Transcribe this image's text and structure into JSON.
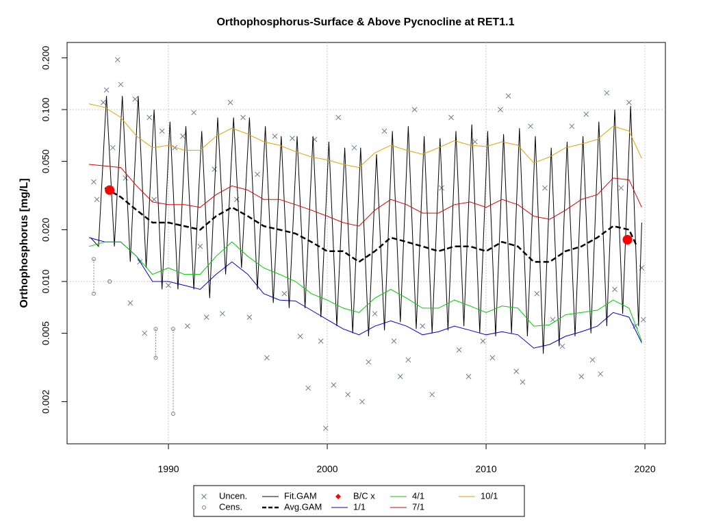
{
  "chart_data": {
    "type": "scatter",
    "title": "Orthophosphorus-Surface & Above Pycnocline at RET1.1",
    "y_label": "Orthophosphorus [mg/L]",
    "log_y": true,
    "xlim": [
      1983.62,
      2021.29
    ],
    "ylim": [
      0.001137,
      0.2457
    ],
    "xticks": [
      1990,
      2000,
      2010,
      2020
    ],
    "yticks": [
      0.002,
      0.005,
      {
        "value": 0.01,
        "label": "0.010"
      },
      {
        "value": 0.02,
        "label": "0.020"
      },
      {
        "value": 0.05,
        "label": "0.050"
      },
      {
        "value": 0.1,
        "label": "0.100"
      },
      {
        "value": 0.2,
        "label": "0.200"
      }
    ],
    "xgrid": [
      1990,
      2000,
      2010,
      2020
    ],
    "ygrid": [
      0.01,
      0.1
    ],
    "legend": "bottom",
    "series": [
      {
        "name": "Uncen.",
        "color": "#6b7a8f",
        "marker": "x",
        "x": [
          1985.3,
          1985.5,
          1985.9,
          1986.1,
          1986.5,
          1986.8,
          1987.0,
          1987.3,
          1987.6,
          1987.9,
          1988.2,
          1988.5,
          1988.8,
          1989.1,
          1989.6,
          1990.0,
          1990.4,
          1990.9,
          1991.2,
          1991.6,
          1992.0,
          1992.4,
          1992.9,
          1993.4,
          1993.9,
          1994.3,
          1994.7,
          1995.1,
          1995.6,
          1996.2,
          1996.7,
          1997.3,
          1997.8,
          1998.3,
          1998.8,
          1999.2,
          1999.6,
          1999.9,
          2000.4,
          2000.7,
          2001.3,
          2001.7,
          2002.2,
          2002.6,
          2003.0,
          2003.6,
          2004.2,
          2004.6,
          2005.1,
          2005.5,
          2006.0,
          2006.6,
          2007.2,
          2007.8,
          2008.3,
          2008.9,
          2009.3,
          2009.8,
          2010.4,
          2010.9,
          2011.4,
          2011.9,
          2012.3,
          2012.8,
          2013.2,
          2013.7,
          2014.2,
          2014.8,
          2015.4,
          2016.0,
          2016.3,
          2016.7,
          2017.2,
          2017.6,
          2018.1,
          2018.5,
          2019.0,
          2019.4,
          2019.8,
          2019.9
        ],
        "values": [
          0.038,
          0.03,
          0.11,
          0.13,
          0.06,
          0.195,
          0.14,
          0.04,
          0.0075,
          0.115,
          0.013,
          0.005,
          0.09,
          0.03,
          0.075,
          0.0095,
          0.06,
          0.07,
          0.0055,
          0.096,
          0.016,
          0.0062,
          0.045,
          0.0065,
          0.11,
          0.03,
          0.09,
          0.0062,
          0.042,
          0.0036,
          0.07,
          0.0085,
          0.068,
          0.0048,
          0.0024,
          0.067,
          0.0045,
          0.0014,
          0.0025,
          0.09,
          0.0022,
          0.06,
          0.002,
          0.0034,
          0.0065,
          0.075,
          0.0045,
          0.0028,
          0.0035,
          0.1,
          0.0055,
          0.0022,
          0.035,
          0.09,
          0.004,
          0.0028,
          0.065,
          0.0045,
          0.0036,
          0.1,
          0.12,
          0.003,
          0.0026,
          0.08,
          0.0085,
          0.035,
          0.006,
          0.0042,
          0.08,
          0.0028,
          0.094,
          0.0035,
          0.0029,
          0.125,
          0.009,
          0.035,
          0.11,
          0.0055,
          0.012,
          0.006
        ]
      },
      {
        "name": "Cens.",
        "color": "#7f7f7f",
        "marker": "o",
        "x": [
          1985.3,
          1986.3,
          1989.2,
          1990.3
        ],
        "values": [
          0.0135,
          0.01,
          0.0053,
          0.0053
        ],
        "lower": [
          0.0085,
          0.01,
          0.0036,
          0.0017
        ]
      },
      {
        "name": "Fit.GAM",
        "color": "#000000",
        "line": true,
        "x": [
          1985.1,
          1985.6,
          1986.1,
          1986.6,
          1987.1,
          1987.6,
          1988.1,
          1988.6,
          1989.1,
          1989.6,
          1990.1,
          1990.6,
          1991.1,
          1991.6,
          1992.1,
          1992.6,
          1993.1,
          1993.6,
          1994.1,
          1994.6,
          1995.1,
          1995.6,
          1996.1,
          1996.6,
          1997.1,
          1997.6,
          1998.1,
          1998.6,
          1999.1,
          1999.6,
          2000.1,
          2000.6,
          2001.1,
          2001.6,
          2002.1,
          2002.6,
          2003.1,
          2003.6,
          2004.1,
          2004.6,
          2005.1,
          2005.6,
          2006.1,
          2006.6,
          2007.1,
          2007.6,
          2008.1,
          2008.6,
          2009.1,
          2009.6,
          2010.1,
          2010.6,
          2011.1,
          2011.6,
          2012.1,
          2012.6,
          2013.1,
          2013.6,
          2014.1,
          2014.6,
          2015.1,
          2015.6,
          2016.1,
          2016.6,
          2017.1,
          2017.6,
          2018.1,
          2018.6,
          2019.1,
          2019.6,
          2019.8
        ],
        "values": [
          0.018,
          0.016,
          0.12,
          0.016,
          0.12,
          0.013,
          0.12,
          0.012,
          0.1,
          0.009,
          0.085,
          0.009,
          0.08,
          0.009,
          0.075,
          0.008,
          0.09,
          0.011,
          0.09,
          0.012,
          0.09,
          0.009,
          0.08,
          0.0075,
          0.07,
          0.007,
          0.07,
          0.007,
          0.07,
          0.0062,
          0.065,
          0.0055,
          0.06,
          0.005,
          0.06,
          0.0048,
          0.055,
          0.0052,
          0.075,
          0.0058,
          0.08,
          0.0053,
          0.07,
          0.005,
          0.068,
          0.0052,
          0.075,
          0.0055,
          0.082,
          0.005,
          0.075,
          0.0048,
          0.072,
          0.005,
          0.078,
          0.0048,
          0.07,
          0.0038,
          0.06,
          0.0042,
          0.065,
          0.0048,
          0.07,
          0.005,
          0.085,
          0.0055,
          0.1,
          0.0065,
          0.105,
          0.0055,
          0.022
        ]
      },
      {
        "name": "Avg.GAM",
        "color": "#000000",
        "line": true,
        "dash": true,
        "x": [
          1986,
          1987,
          1988,
          1989,
          1990,
          1991,
          1992,
          1993,
          1994,
          1995,
          1996,
          1997,
          1998,
          1999,
          2000,
          2001,
          2002,
          2003,
          2004,
          2005,
          2006,
          2007,
          2008,
          2009,
          2010,
          2011,
          2012,
          2013,
          2014,
          2015,
          2016,
          2017,
          2018,
          2019,
          2019.5
        ],
        "values": [
          0.035,
          0.031,
          0.026,
          0.022,
          0.022,
          0.021,
          0.02,
          0.024,
          0.027,
          0.024,
          0.021,
          0.02,
          0.019,
          0.017,
          0.015,
          0.015,
          0.013,
          0.015,
          0.018,
          0.017,
          0.016,
          0.015,
          0.016,
          0.016,
          0.015,
          0.017,
          0.016,
          0.013,
          0.013,
          0.015,
          0.016,
          0.018,
          0.021,
          0.02,
          0.016
        ]
      },
      {
        "name": "B/C x",
        "color": "#ff0000",
        "marker": "dot",
        "x": [
          1986.3,
          2018.9
        ],
        "values": [
          0.034,
          0.0175
        ]
      },
      {
        "name": "1/1",
        "color": "#0000cc",
        "line": true,
        "x": [
          1985,
          1986,
          1987,
          1988,
          1989,
          1990,
          1991,
          1992,
          1993,
          1994,
          1995,
          1996,
          1997,
          1998,
          1999,
          2000,
          2001,
          2002,
          2003,
          2004,
          2005,
          2006,
          2007,
          2008,
          2009,
          2010,
          2011,
          2012,
          2013,
          2014,
          2015,
          2016,
          2017,
          2018,
          2019,
          2019.8
        ],
        "values": [
          0.018,
          0.017,
          0.017,
          0.014,
          0.01,
          0.01,
          0.0095,
          0.009,
          0.011,
          0.013,
          0.011,
          0.0085,
          0.0078,
          0.0077,
          0.0068,
          0.006,
          0.0053,
          0.0049,
          0.0055,
          0.0059,
          0.0055,
          0.0049,
          0.0051,
          0.0055,
          0.0052,
          0.0049,
          0.0051,
          0.0049,
          0.0041,
          0.0043,
          0.0048,
          0.0051,
          0.0055,
          0.0066,
          0.0062,
          0.0044
        ]
      },
      {
        "name": "4/1",
        "color": "#00cc00",
        "line": true,
        "x": [
          1985,
          1986,
          1987,
          1988,
          1989,
          1990,
          1991,
          1992,
          1993,
          1994,
          1995,
          1996,
          1997,
          1998,
          1999,
          2000,
          2001,
          2002,
          2003,
          2004,
          2005,
          2006,
          2007,
          2008,
          2009,
          2010,
          2011,
          2012,
          2013,
          2014,
          2015,
          2016,
          2017,
          2018,
          2019,
          2019.8
        ],
        "values": [
          0.016,
          0.017,
          0.017,
          0.014,
          0.011,
          0.012,
          0.011,
          0.011,
          0.014,
          0.017,
          0.014,
          0.012,
          0.011,
          0.01,
          0.0085,
          0.0078,
          0.007,
          0.0066,
          0.008,
          0.009,
          0.008,
          0.007,
          0.007,
          0.0078,
          0.0072,
          0.0066,
          0.0072,
          0.007,
          0.0055,
          0.0056,
          0.0064,
          0.0066,
          0.0068,
          0.0078,
          0.007,
          0.0045
        ]
      },
      {
        "name": "7/1",
        "color": "#dd0000",
        "line": true,
        "x": [
          1985,
          1986,
          1987,
          1988,
          1989,
          1990,
          1991,
          1992,
          1993,
          1994,
          1995,
          1996,
          1997,
          1998,
          1999,
          2000,
          2001,
          2002,
          2003,
          2004,
          2005,
          2006,
          2007,
          2008,
          2009,
          2010,
          2011,
          2012,
          2013,
          2014,
          2015,
          2016,
          2017,
          2018,
          2019,
          2019.8
        ],
        "values": [
          0.048,
          0.047,
          0.046,
          0.036,
          0.029,
          0.028,
          0.028,
          0.027,
          0.032,
          0.036,
          0.034,
          0.03,
          0.03,
          0.028,
          0.026,
          0.024,
          0.022,
          0.021,
          0.026,
          0.03,
          0.028,
          0.025,
          0.025,
          0.028,
          0.029,
          0.027,
          0.03,
          0.028,
          0.024,
          0.023,
          0.026,
          0.03,
          0.032,
          0.04,
          0.039,
          0.027
        ]
      },
      {
        "name": "10/1",
        "color": "#e69f00",
        "line": true,
        "x": [
          1985,
          1986,
          1987,
          1988,
          1989,
          1990,
          1991,
          1992,
          1993,
          1994,
          1995,
          1996,
          1997,
          1998,
          1999,
          2000,
          2001,
          2002,
          2003,
          2004,
          2005,
          2006,
          2007,
          2008,
          2009,
          2010,
          2011,
          2012,
          2013,
          2014,
          2015,
          2016,
          2017,
          2018,
          2019,
          2019.8
        ],
        "values": [
          0.108,
          0.103,
          0.09,
          0.07,
          0.06,
          0.062,
          0.058,
          0.058,
          0.07,
          0.078,
          0.072,
          0.065,
          0.062,
          0.057,
          0.053,
          0.051,
          0.048,
          0.046,
          0.056,
          0.062,
          0.058,
          0.055,
          0.06,
          0.066,
          0.062,
          0.061,
          0.065,
          0.062,
          0.049,
          0.053,
          0.06,
          0.063,
          0.067,
          0.08,
          0.075,
          0.052
        ]
      }
    ]
  }
}
